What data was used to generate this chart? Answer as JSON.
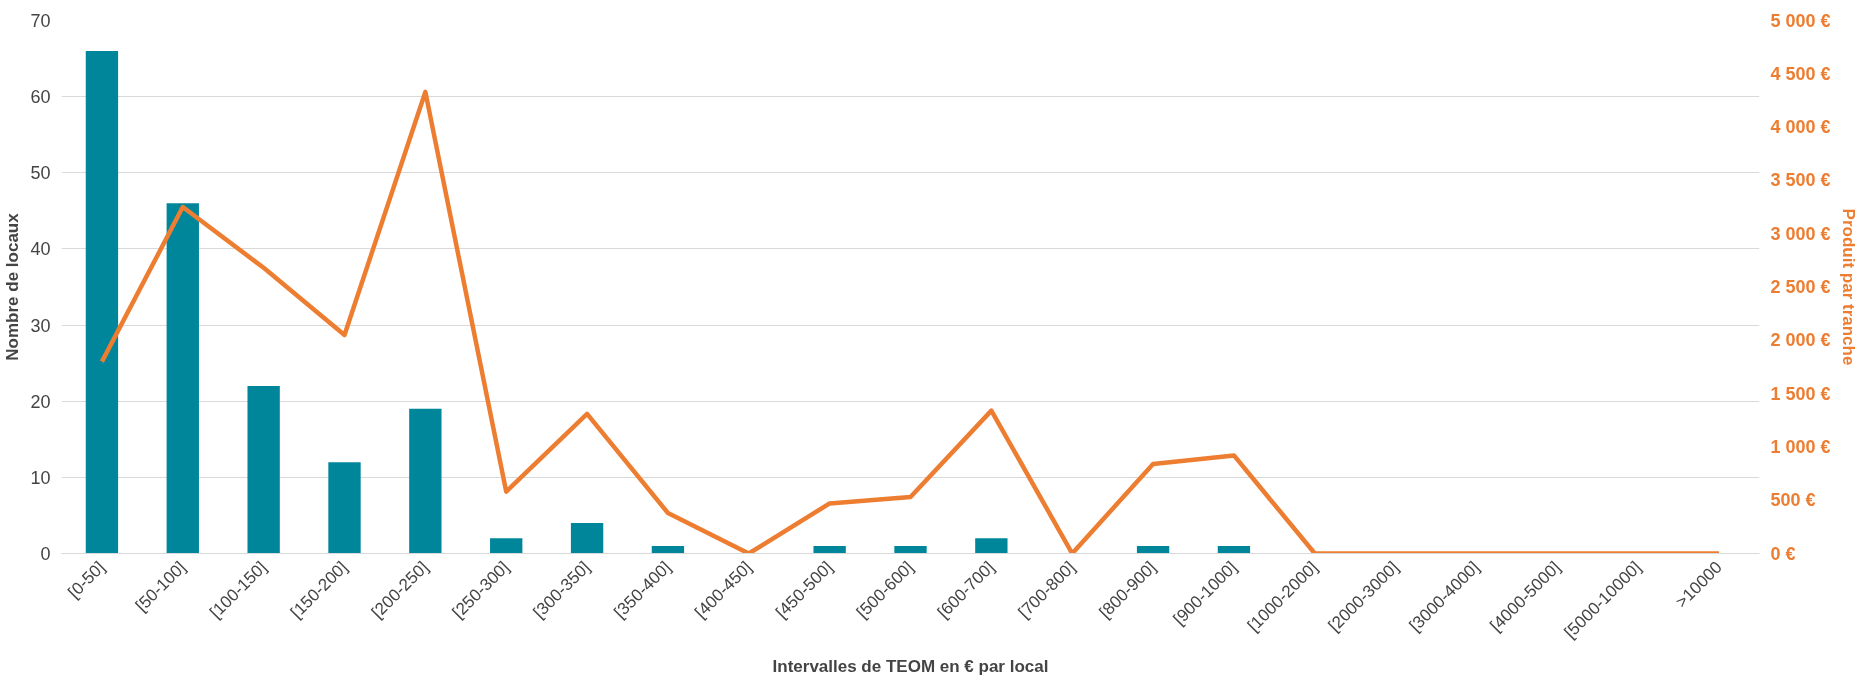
{
  "chart_data": {
    "type": "bar",
    "xlabel": "Intervalles de TEOM en € par local",
    "ylabel": "Nombre de locaux",
    "y2label": "Produit par tranche",
    "categories": [
      "[0-50]",
      "[50-100]",
      "[100-150]",
      "[150-200]",
      "[200-250]",
      "[250-300]",
      "[300-350]",
      "[350-400]",
      "[400-450]",
      "[450-500]",
      "[500-600]",
      "[600-700]",
      "[700-800]",
      "[800-900]",
      "[900-1000]",
      "[1000-2000]",
      "[2000-3000]",
      "[3000-4000]",
      "[4000-5000]",
      "[5000-10000]",
      ">10000"
    ],
    "series": [
      {
        "color": "#00869a",
        "values": [
          66,
          46,
          22,
          12,
          19,
          2,
          4,
          1,
          0,
          1,
          1,
          2,
          0,
          1,
          1,
          0,
          0,
          0,
          0,
          0,
          0
        ]
      },
      {
        "type": "line",
        "axis": "y2",
        "color": "#ed7d31",
        "values": [
          1800,
          3250,
          2680,
          2050,
          4330,
          580,
          1310,
          380,
          0,
          470,
          530,
          1340,
          0,
          840,
          920,
          0,
          0,
          0,
          0,
          0,
          0
        ]
      }
    ],
    "ylim": [
      0,
      70
    ],
    "yticks": [
      0,
      10,
      20,
      30,
      40,
      50,
      60,
      70
    ],
    "y2lim": [
      0,
      5000
    ],
    "y2ticks": [
      {
        "value": 0,
        "label": "0 €"
      },
      {
        "value": 500,
        "label": "500 €"
      },
      {
        "value": 1000,
        "label": "1 000 €"
      },
      {
        "value": 1500,
        "label": "1 500 €"
      },
      {
        "value": 2000,
        "label": "2 000 €"
      },
      {
        "value": 2500,
        "label": "2 500 €"
      },
      {
        "value": 3000,
        "label": "3 000 €"
      },
      {
        "value": 3500,
        "label": "3 500 €"
      },
      {
        "value": 4000,
        "label": "4 000 €"
      },
      {
        "value": 4500,
        "label": "4 500 €"
      },
      {
        "value": 5000,
        "label": "5 000 €"
      }
    ],
    "grid": "y",
    "marker": "none",
    "line_style": "solid"
  }
}
